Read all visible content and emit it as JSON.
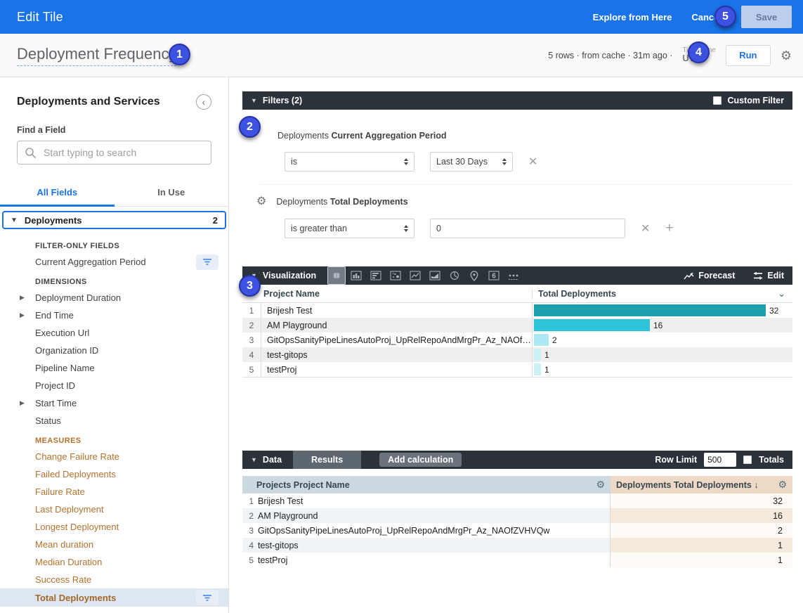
{
  "topbar": {
    "title": "Edit Tile",
    "explore": "Explore from Here",
    "cancel": "Cancel",
    "save": "Save"
  },
  "header": {
    "title": "Deployment Frequency",
    "status": "5 rows · from cache · 31m ago ·",
    "timezone_label": "Time Zone",
    "timezone": "UTC",
    "run": "Run"
  },
  "badges": [
    "1",
    "2",
    "3",
    "4",
    "5"
  ],
  "sidebar": {
    "title": "Deployments and Services",
    "find_label": "Find a Field",
    "search_placeholder": "Start typing to search",
    "tabs": {
      "all_fields": "All Fields",
      "in_use": "In Use"
    },
    "group": {
      "label": "Deployments",
      "count": "2"
    },
    "sections": [
      {
        "label": "FILTER-ONLY FIELDS",
        "kind": "filter",
        "items": [
          {
            "label": "Current Aggregation Period",
            "filter": true
          }
        ]
      },
      {
        "label": "DIMENSIONS",
        "kind": "dimension",
        "items": [
          {
            "label": "Deployment Duration",
            "caret": true
          },
          {
            "label": "End Time",
            "caret": true
          },
          {
            "label": "Execution Url"
          },
          {
            "label": "Organization ID"
          },
          {
            "label": "Pipeline Name"
          },
          {
            "label": "Project ID"
          },
          {
            "label": "Start Time",
            "caret": true
          },
          {
            "label": "Status"
          }
        ]
      },
      {
        "label": "MEASURES",
        "kind": "measure",
        "items": [
          {
            "label": "Change Failure Rate"
          },
          {
            "label": "Failed Deployments"
          },
          {
            "label": "Failure Rate"
          },
          {
            "label": "Last Deployment"
          },
          {
            "label": "Longest Deployment"
          },
          {
            "label": "Mean duration"
          },
          {
            "label": "Median Duration"
          },
          {
            "label": "Success Rate"
          },
          {
            "label": "Total Deployments",
            "filter": true,
            "selected": true
          }
        ]
      }
    ]
  },
  "filters": {
    "title": "Filters (2)",
    "custom_filter_label": "Custom Filter",
    "rows": [
      {
        "group": "Deployments",
        "field": "Current Aggregation Period",
        "operator": "is",
        "value": "Last 30 Days",
        "value_kind": "select",
        "gear": false,
        "plus": false
      },
      {
        "group": "Deployments",
        "field": "Total Deployments",
        "operator": "is greater than",
        "value": "0",
        "value_kind": "input",
        "gear": true,
        "plus": true
      }
    ]
  },
  "visualization": {
    "title": "Visualization",
    "forecast_label": "Forecast",
    "edit_label": "Edit",
    "icons": [
      {
        "name": "table-icon",
        "selected": true
      },
      {
        "name": "column-chart-icon",
        "selected": false
      },
      {
        "name": "bar-chart-icon",
        "selected": false
      },
      {
        "name": "scatter-chart-icon",
        "selected": false
      },
      {
        "name": "line-chart-icon",
        "selected": false
      },
      {
        "name": "area-chart-icon",
        "selected": false
      },
      {
        "name": "pie-chart-icon",
        "selected": false
      },
      {
        "name": "map-icon",
        "selected": false
      },
      {
        "name": "single-value-icon",
        "selected": false
      },
      {
        "name": "more-icon",
        "selected": false
      }
    ],
    "table": {
      "dim_header": "Project Name",
      "meas_header": "Total Deployments",
      "rows": [
        {
          "name": "Brijesh Test",
          "value": 32,
          "bar_color": "#1d9fae"
        },
        {
          "name": "AM Playground",
          "value": 16,
          "bar_color": "#2fc3d9"
        },
        {
          "name": "GitOpsSanityPipeLinesAutoProj_UpRelRepoAndMrgPr_Az_NAOfZ...",
          "value": 2,
          "bar_color": "#ade9f3"
        },
        {
          "name": "test-gitops",
          "value": 1,
          "bar_color": "#c9f1f8"
        },
        {
          "name": "testProj",
          "value": 1,
          "bar_color": "#c9f1f8"
        }
      ]
    }
  },
  "data": {
    "title": "Data",
    "results_tab": "Results",
    "add_calculation": "Add calculation",
    "row_limit_label": "Row Limit",
    "row_limit_value": "500",
    "totals_label": "Totals",
    "headers": {
      "dim": "Projects Project Name",
      "meas": "Deployments Total Deployments ↓"
    },
    "rows": [
      {
        "name": "Brijesh Test",
        "value": "32"
      },
      {
        "name": "AM Playground",
        "value": "16"
      },
      {
        "name": "GitOpsSanityPipeLinesAutoProj_UpRelRepoAndMrgPr_Az_NAOfZVHVQw",
        "value": "2"
      },
      {
        "name": "test-gitops",
        "value": "1"
      },
      {
        "name": "testProj",
        "value": "1"
      }
    ]
  }
}
